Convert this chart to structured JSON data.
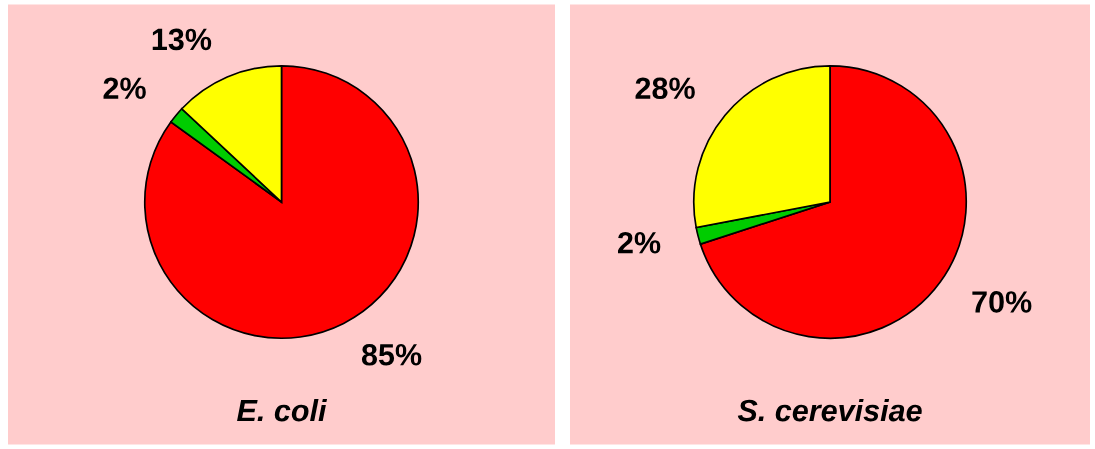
{
  "chart_data": [
    {
      "type": "pie",
      "title": "E. coli",
      "categories": [
        null,
        null,
        null
      ],
      "values": [
        85,
        2,
        13
      ],
      "colors": [
        "#ff0000",
        "#00cc00",
        "#ffff00"
      ],
      "value_labels": [
        "85%",
        "2%",
        "13%"
      ]
    },
    {
      "type": "pie",
      "title": "S. cerevisiae",
      "categories": [
        null,
        null,
        null
      ],
      "values": [
        70,
        2,
        28
      ],
      "colors": [
        "#ff0000",
        "#00cc00",
        "#ffff00"
      ],
      "value_labels": [
        "70%",
        "2%",
        "28%"
      ]
    }
  ]
}
